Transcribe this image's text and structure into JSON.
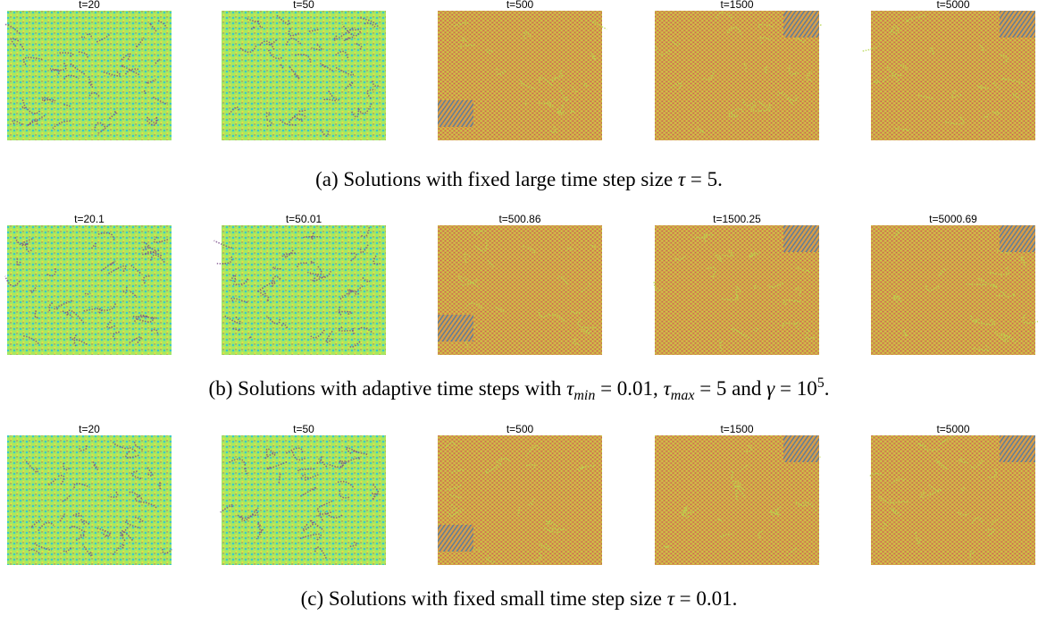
{
  "figure": {
    "rows": [
      {
        "panels": [
          {
            "title": "t=20"
          },
          {
            "title": "t=50"
          },
          {
            "title": "t=500"
          },
          {
            "title": "t=1500"
          },
          {
            "title": "t=5000"
          }
        ],
        "caption": [
          {
            "text": "(a) Solutions with fixed large time step size ",
            "style": "roman"
          },
          {
            "text": "τ",
            "style": "italic"
          },
          {
            "text": " = 5.",
            "style": "roman"
          }
        ]
      },
      {
        "panels": [
          {
            "title": "t=20.1"
          },
          {
            "title": "t=50.01"
          },
          {
            "title": "t=500.86"
          },
          {
            "title": "t=1500.25"
          },
          {
            "title": "t=5000.69"
          }
        ],
        "caption": [
          {
            "text": "(b) Solutions with adaptive time steps with ",
            "style": "roman"
          },
          {
            "text": "τ",
            "style": "italic"
          },
          {
            "text": "min",
            "style": "sub"
          },
          {
            "text": " = 0.01, ",
            "style": "roman"
          },
          {
            "text": "τ",
            "style": "italic"
          },
          {
            "text": "max",
            "style": "sub"
          },
          {
            "text": " = 5 and ",
            "style": "roman"
          },
          {
            "text": "γ",
            "style": "italic"
          },
          {
            "text": " = 10",
            "style": "roman"
          },
          {
            "text": "5",
            "style": "sup"
          },
          {
            "text": ".",
            "style": "roman"
          }
        ]
      },
      {
        "panels": [
          {
            "title": "t=20"
          },
          {
            "title": "t=50"
          },
          {
            "title": "t=500"
          },
          {
            "title": "t=1500"
          },
          {
            "title": "t=5000"
          }
        ],
        "caption": [
          {
            "text": "(c) Solutions with fixed small time step size ",
            "style": "roman"
          },
          {
            "text": "τ",
            "style": "italic"
          },
          {
            "text": " = 0.01.",
            "style": "roman"
          }
        ]
      }
    ]
  }
}
